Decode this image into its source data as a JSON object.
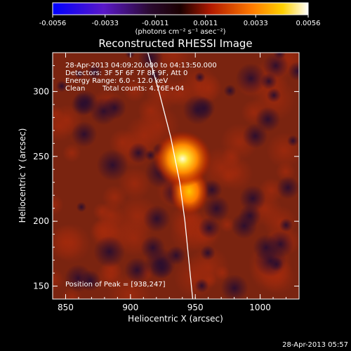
{
  "chart_data": {
    "type": "heatmap",
    "title": "Reconstructed RHESSI Image",
    "colorbar": {
      "ticks": [
        "-0.0056",
        "-0.0033",
        "-0.0011",
        "0.0011",
        "0.0033",
        "0.0056"
      ],
      "tick_values": [
        -0.0056,
        -0.0033,
        -0.0011,
        0.0011,
        0.0033,
        0.0056
      ],
      "range": [
        -0.0056,
        0.0056
      ],
      "colormap": "blue-purple-black-red-orange-yellow-white",
      "unit_label": "(photons cm⁻² s⁻¹ asec⁻²)"
    },
    "xlabel": "Heliocentric X (arcsec)",
    "ylabel": "Heliocentric Y (arcsec)",
    "xlim": [
      840,
      1030
    ],
    "ylim": [
      140,
      330
    ],
    "xticks": [
      850,
      900,
      950,
      1000
    ],
    "yticks": [
      150,
      200,
      250,
      300
    ],
    "annotations": [
      "28-Apr-2013 04:09:20.000 to 04:13:50.000",
      "Detectors: 3F 5F 6F 7F 8F 9F, Att 0",
      "Energy Range: 6.0 - 12.0 keV",
      "Clean",
      "Total counts: 4.76E+04"
    ],
    "peak_label": "Position of Peak = [938,247]",
    "peak": [
      938,
      247
    ],
    "secondary_source": [
      942,
      223
    ],
    "limb_curve": [
      [
        912,
        335
      ],
      [
        922,
        300
      ],
      [
        931,
        265
      ],
      [
        938,
        230
      ],
      [
        942,
        200
      ],
      [
        945,
        170
      ],
      [
        948,
        140
      ]
    ]
  },
  "footer": {
    "timestamp": "28-Apr-2013 05:57"
  },
  "colors": {
    "background": "#000000",
    "text": "#ffffff"
  }
}
